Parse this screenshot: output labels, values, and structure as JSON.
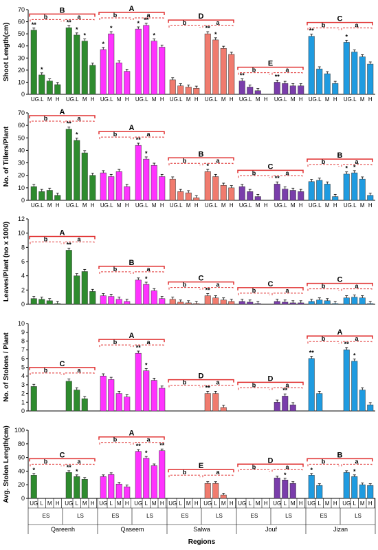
{
  "colors": {
    "Qareenh": "#2e8b2e",
    "Qaseem": "#ff33ff",
    "Salwa": "#f07b6e",
    "Jouf": "#7a3dab",
    "Jizan": "#1f9be0",
    "bracket": "#e03030"
  },
  "x_axis": {
    "title": "Regions",
    "regions": [
      "Qareenh",
      "Qaseem",
      "Salwa",
      "Jouf",
      "Jizan"
    ],
    "seasons": [
      "ES",
      "LS"
    ],
    "sites": [
      "UG",
      "L",
      "M",
      "H"
    ],
    "sites_short": [
      "UG.L",
      "M",
      "H"
    ]
  },
  "chart_data": [
    {
      "type": "bar",
      "ylabel": "Shoot Length(cm)",
      "ylim": [
        0,
        70
      ],
      "yticks": [
        0,
        10,
        20,
        30,
        40,
        50,
        60,
        70
      ],
      "labels_style": "short",
      "series": [
        {
          "name": "Qareenh",
          "ES": [
            53,
            16,
            11,
            8
          ],
          "LS": [
            55,
            49,
            44,
            24
          ],
          "stars_ES": [
            "**",
            "*",
            "",
            ""
          ],
          "stars_LS": [
            "**",
            "*",
            "*",
            ""
          ]
        },
        {
          "name": "Qaseem",
          "ES": [
            37,
            50,
            26,
            19
          ],
          "LS": [
            54,
            57,
            44,
            39
          ],
          "stars_ES": [
            "*",
            "*",
            "",
            ""
          ],
          "stars_LS": [
            "*",
            "**",
            "*",
            ""
          ]
        },
        {
          "name": "Salwa",
          "ES": [
            12,
            7,
            6,
            5
          ],
          "LS": [
            50,
            45,
            38,
            33
          ],
          "stars_ES": [
            "",
            "",
            "",
            ""
          ],
          "stars_LS": [
            "**",
            "*",
            "",
            ""
          ]
        },
        {
          "name": "Jouf",
          "ES": [
            11,
            6,
            3,
            0
          ],
          "LS": [
            10,
            9,
            7,
            7
          ],
          "stars_ES": [
            "**",
            "",
            "",
            ""
          ],
          "stars_LS": [
            "**",
            "",
            "",
            ""
          ]
        },
        {
          "name": "Jizan",
          "ES": [
            48,
            21,
            17,
            9
          ],
          "LS": [
            43,
            35,
            31,
            25
          ],
          "stars_ES": [
            "**",
            "",
            "",
            ""
          ],
          "stars_LS": [
            "*",
            "",
            "",
            ""
          ]
        }
      ],
      "group_letters": [
        "B",
        "A",
        "D",
        "E",
        "C"
      ],
      "season_letters": [
        [
          "b",
          "a"
        ],
        [
          "b",
          "a"
        ],
        [
          "b",
          "a"
        ],
        [
          "b",
          "a"
        ],
        [
          "b",
          "a"
        ]
      ]
    },
    {
      "type": "bar",
      "ylabel": "No. of Tillers/Plant",
      "ylim": [
        0,
        70
      ],
      "yticks": [
        0,
        10,
        20,
        30,
        40,
        50,
        60,
        70
      ],
      "labels_style": "short",
      "series": [
        {
          "name": "Qareenh",
          "ES": [
            11,
            7,
            8,
            4
          ],
          "LS": [
            57,
            48,
            38,
            20
          ],
          "stars_ES": [
            "",
            "",
            "",
            ""
          ],
          "stars_LS": [
            "**",
            "*",
            "",
            ""
          ]
        },
        {
          "name": "Qaseem",
          "ES": [
            22,
            19,
            23,
            11
          ],
          "LS": [
            44,
            33,
            28,
            19
          ],
          "stars_ES": [
            "",
            "",
            "",
            ""
          ],
          "stars_LS": [
            "**",
            "*",
            "",
            ""
          ]
        },
        {
          "name": "Salwa",
          "ES": [
            17,
            7,
            6,
            2
          ],
          "LS": [
            23,
            19,
            12,
            10
          ],
          "stars_ES": [
            "",
            "",
            "",
            ""
          ],
          "stars_LS": [
            "*",
            "",
            "",
            ""
          ]
        },
        {
          "name": "Jouf",
          "ES": [
            11,
            7,
            3,
            0
          ],
          "LS": [
            13,
            9,
            8,
            7
          ],
          "stars_ES": [
            "",
            "",
            "",
            ""
          ],
          "stars_LS": [
            "**",
            "",
            "",
            ""
          ]
        },
        {
          "name": "Jizan",
          "ES": [
            15,
            16,
            13,
            3
          ],
          "LS": [
            21,
            22,
            17,
            4
          ],
          "stars_ES": [
            "",
            "",
            "",
            ""
          ],
          "stars_LS": [
            "*",
            "*",
            "",
            ""
          ]
        }
      ],
      "group_letters": [
        "A",
        "A",
        "B",
        "C",
        "B"
      ],
      "season_letters": [
        [
          "b",
          "a"
        ],
        [
          "b",
          "a"
        ],
        [
          "b",
          "a"
        ],
        [
          "b",
          "a"
        ],
        [
          "b",
          "a"
        ]
      ]
    },
    {
      "type": "bar",
      "ylabel": "Leaves/Plant (no x 1000)",
      "ylim": [
        0,
        12
      ],
      "yticks": [
        0,
        2,
        4,
        6,
        8,
        10,
        12
      ],
      "labels_style": "none",
      "series": [
        {
          "name": "Qareenh",
          "ES": [
            0.8,
            0.7,
            0.5,
            0.1
          ],
          "LS": [
            7.6,
            4.0,
            4.6,
            1.8
          ],
          "stars_ES": [
            "",
            "",
            "",
            ""
          ],
          "stars_LS": [
            "**",
            "",
            "",
            ""
          ]
        },
        {
          "name": "Qaseem",
          "ES": [
            1.2,
            1.1,
            0.7,
            0.4
          ],
          "LS": [
            3.4,
            2.8,
            1.9,
            0.8
          ],
          "stars_ES": [
            "",
            "",
            "",
            ""
          ],
          "stars_LS": [
            "",
            "*",
            "",
            ""
          ]
        },
        {
          "name": "Salwa",
          "ES": [
            0.7,
            0.3,
            0.2,
            0.1
          ],
          "LS": [
            1.2,
            0.9,
            0.6,
            0.4
          ],
          "stars_ES": [
            "",
            "",
            "",
            ""
          ],
          "stars_LS": [
            "**",
            "",
            "",
            ""
          ]
        },
        {
          "name": "Jouf",
          "ES": [
            0.4,
            0.3,
            0.1,
            0.0
          ],
          "LS": [
            0.4,
            0.3,
            0.2,
            0.2
          ],
          "stars_ES": [
            "",
            "",
            "",
            ""
          ],
          "stars_LS": [
            "",
            "",
            "",
            ""
          ]
        },
        {
          "name": "Jizan",
          "ES": [
            0.4,
            0.6,
            0.5,
            0.1
          ],
          "LS": [
            0.9,
            1.0,
            0.9,
            0.1
          ],
          "stars_ES": [
            "",
            "",
            "",
            ""
          ],
          "stars_LS": [
            "",
            "",
            "",
            ""
          ]
        }
      ],
      "group_letters": [
        "A",
        "B",
        "C",
        "C",
        "C"
      ],
      "season_letters": [
        [
          "b",
          "a"
        ],
        [
          "b",
          "a"
        ],
        [
          "b",
          "a"
        ],
        [
          "b",
          "a"
        ],
        [
          "b",
          "a"
        ]
      ]
    },
    {
      "type": "bar",
      "ylabel": "No. of Stolons / Plant",
      "ylim": [
        0,
        10
      ],
      "yticks": [
        0,
        1,
        2,
        3,
        4,
        5,
        6,
        7,
        8,
        9,
        10
      ],
      "labels_style": "none",
      "series": [
        {
          "name": "Qareenh",
          "ES": [
            2.8,
            0,
            0,
            0
          ],
          "LS": [
            3.4,
            2.4,
            1.4,
            0
          ],
          "stars_ES": [
            "",
            "",
            "",
            ""
          ],
          "stars_LS": [
            "",
            "",
            "",
            ""
          ]
        },
        {
          "name": "Qaseem",
          "ES": [
            4.0,
            3.6,
            2.0,
            1.6
          ],
          "LS": [
            6.6,
            4.6,
            3.5,
            2.6
          ],
          "stars_ES": [
            "",
            "",
            "",
            ""
          ],
          "stars_LS": [
            "**",
            "*",
            "",
            ""
          ]
        },
        {
          "name": "Salwa",
          "ES": [
            0,
            0,
            0,
            0
          ],
          "LS": [
            2.0,
            2.0,
            0.4,
            0
          ],
          "stars_ES": [
            "",
            "",
            "",
            ""
          ],
          "stars_LS": [
            "**",
            "",
            "",
            ""
          ]
        },
        {
          "name": "Jouf",
          "ES": [
            0,
            0,
            0,
            0
          ],
          "LS": [
            1.0,
            1.7,
            0.7,
            0
          ],
          "stars_ES": [
            "",
            "",
            "",
            ""
          ],
          "stars_LS": [
            "",
            "**",
            "",
            ""
          ]
        },
        {
          "name": "Jizan",
          "ES": [
            6.0,
            2.0,
            0,
            0
          ],
          "LS": [
            7.0,
            5.7,
            2.4,
            0.7
          ],
          "stars_ES": [
            "**",
            "",
            "",
            ""
          ],
          "stars_LS": [
            "**",
            "*",
            "",
            ""
          ]
        }
      ],
      "group_letters": [
        "C",
        "A",
        "D",
        "D",
        "A"
      ],
      "season_letters": [
        [
          "b",
          "a"
        ],
        [
          "b",
          "a"
        ],
        [
          "b",
          "a"
        ],
        [
          "b",
          "a"
        ],
        [
          "b",
          "a"
        ]
      ]
    },
    {
      "type": "bar",
      "ylabel": "Avg. Stolon Length(cm)",
      "ylim": [
        0,
        100
      ],
      "yticks": [
        0,
        20,
        40,
        60,
        80,
        100
      ],
      "labels_style": "full",
      "series": [
        {
          "name": "Qareenh",
          "ES": [
            34,
            0,
            0,
            0
          ],
          "LS": [
            38,
            32,
            28,
            0
          ],
          "stars_ES": [
            "*",
            "",
            "",
            ""
          ],
          "stars_LS": [
            "**",
            "*",
            "",
            ""
          ]
        },
        {
          "name": "Qaseem",
          "ES": [
            32,
            35,
            21,
            17
          ],
          "LS": [
            69,
            59,
            48,
            70
          ],
          "stars_ES": [
            "",
            "",
            "",
            ""
          ],
          "stars_LS": [
            "**",
            "*",
            "",
            "**"
          ]
        },
        {
          "name": "Salwa",
          "ES": [
            0,
            0,
            0,
            0
          ],
          "LS": [
            22,
            22,
            5,
            0
          ],
          "stars_ES": [
            "",
            "",
            "",
            ""
          ],
          "stars_LS": [
            "",
            "",
            "",
            ""
          ]
        },
        {
          "name": "Jouf",
          "ES": [
            0,
            0,
            0,
            0
          ],
          "LS": [
            30,
            27,
            22,
            0
          ],
          "stars_ES": [
            "",
            "",
            "",
            ""
          ],
          "stars_LS": [
            "",
            "*",
            "",
            ""
          ]
        },
        {
          "name": "Jizan",
          "ES": [
            34,
            19,
            0,
            0
          ],
          "LS": [
            38,
            32,
            20,
            19
          ],
          "stars_ES": [
            "*",
            "",
            "",
            ""
          ],
          "stars_LS": [
            "",
            "*",
            "",
            ""
          ]
        }
      ],
      "group_letters": [
        "C",
        "A",
        "E",
        "D",
        "B"
      ],
      "season_letters": [
        [
          "b",
          "a"
        ],
        [
          "b",
          "a"
        ],
        [
          "b",
          "a"
        ],
        [
          "b",
          "a"
        ],
        [
          "b",
          "a"
        ]
      ]
    }
  ]
}
